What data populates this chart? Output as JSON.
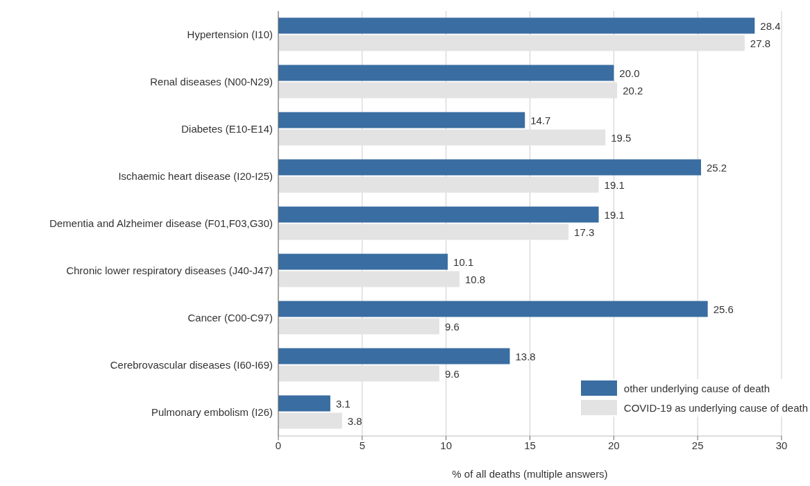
{
  "chart_data": {
    "type": "bar",
    "orientation": "horizontal",
    "xlabel": "% of all deaths (multiple answers)",
    "categories": [
      "Hypertension (I10)",
      "Renal diseases (N00-N29)",
      "Diabetes (E10-E14)",
      "Ischaemic heart disease (I20-I25)",
      "Dementia and Alzheimer disease (F01,F03,G30)",
      "Chronic lower respiratory diseases (J40-J47)",
      "Cancer (C00-C97)",
      "Cerebrovascular diseases (I60-I69)",
      "Pulmonary embolism (I26)"
    ],
    "series": [
      {
        "name": "other underlying cause of death",
        "color": "#3a6da1",
        "values": [
          28.4,
          20.0,
          14.7,
          25.2,
          19.1,
          10.1,
          25.6,
          13.8,
          3.1
        ],
        "value_labels": [
          "28.4",
          "20.0",
          "14.7",
          "25.2",
          "19.1",
          "10.1",
          "25.6",
          "13.8",
          "3.1"
        ]
      },
      {
        "name": "COVID-19 as underlying cause of death",
        "color": "#e3e3e3",
        "values": [
          27.8,
          20.2,
          19.5,
          19.1,
          17.3,
          10.8,
          9.6,
          9.6,
          3.8
        ],
        "value_labels": [
          "27.8",
          "20.2",
          "19.5",
          "19.1",
          "17.3",
          "10.8",
          "9.6",
          "9.6",
          "3.8"
        ]
      }
    ],
    "xlim": [
      0,
      30
    ],
    "xticks": [
      0,
      5,
      10,
      15,
      20,
      25,
      30
    ],
    "grid": "x",
    "legend": "bottom right"
  }
}
